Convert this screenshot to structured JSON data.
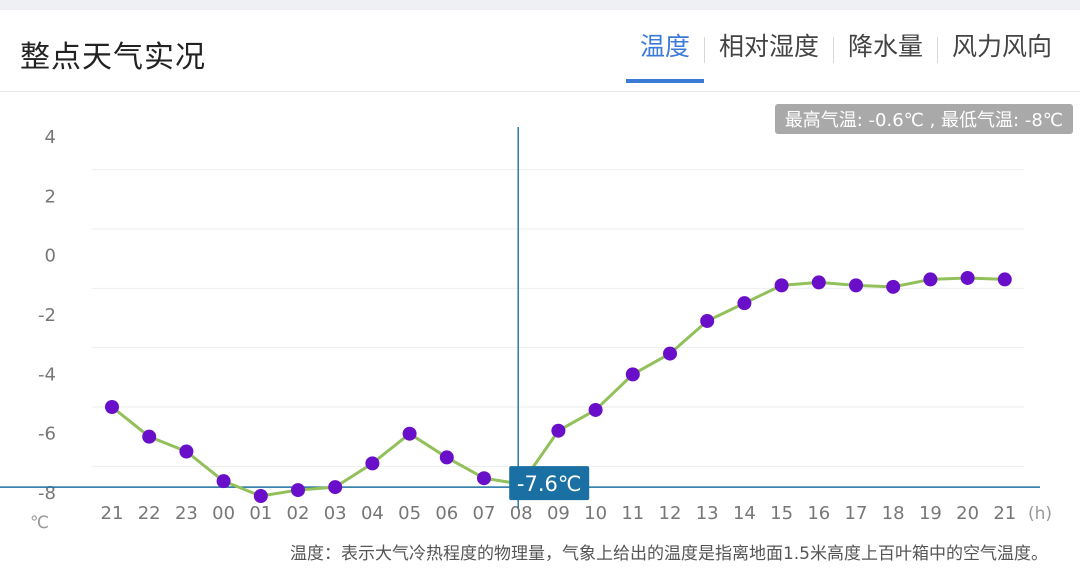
{
  "header": {
    "title": "整点天气实况",
    "tabs": [
      {
        "label": "温度",
        "active": true
      },
      {
        "label": "相对湿度",
        "active": false
      },
      {
        "label": "降水量",
        "active": false
      },
      {
        "label": "风力风向",
        "active": false
      }
    ]
  },
  "range_label": "最高气温: -0.6℃ , 最低气温: -8℃",
  "footnote": "温度：表示大气冷热程度的物理量，气象上给出的温度是指离地面1.5米高度上百叶箱中的空气温度。",
  "colors": {
    "accent": "#3c7ad8",
    "line": "#92c05a",
    "point": "#6a0fc9",
    "crosshair": "#1d6fa0",
    "tooltip_bg": "#1a6fa3",
    "badge_bg": "#a9a9a9"
  },
  "tooltip": {
    "label": "-7.6℃",
    "category": "08",
    "value": -7.6
  },
  "chart_data": {
    "type": "line",
    "categories": [
      "21",
      "22",
      "23",
      "00",
      "01",
      "02",
      "03",
      "04",
      "05",
      "06",
      "07",
      "08",
      "09",
      "10",
      "11",
      "12",
      "13",
      "14",
      "15",
      "16",
      "17",
      "18",
      "19",
      "20",
      "21"
    ],
    "series": [
      {
        "values": [
          -5.0,
          -6.0,
          -6.5,
          -7.5,
          -8.0,
          -7.8,
          -7.7,
          -6.9,
          -5.9,
          -6.7,
          -7.4,
          -7.6,
          -5.8,
          -5.1,
          -3.9,
          -3.2,
          -2.1,
          -1.5,
          -0.9,
          -0.8,
          -0.9,
          -0.95,
          -0.7,
          -0.65,
          -0.7
        ]
      }
    ],
    "yticks": [
      4,
      2,
      0,
      -2,
      -4,
      -6,
      -8
    ],
    "ylim": [
      -8,
      4
    ],
    "xunit": "(h)",
    "yunit": "℃",
    "grid": true,
    "highlight_index": 11
  }
}
